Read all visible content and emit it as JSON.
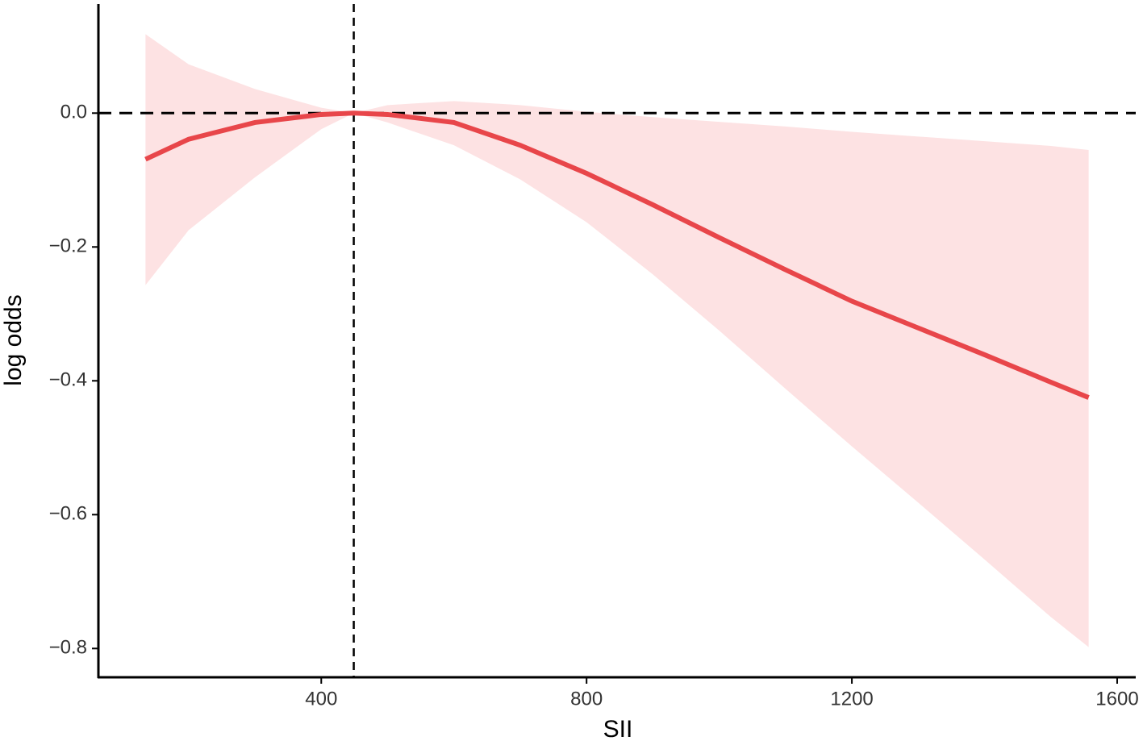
{
  "chart_data": {
    "type": "line",
    "x_label": "SII",
    "y_label": "log odds",
    "x": [
      135,
      200,
      300,
      400,
      449,
      500,
      600,
      700,
      800,
      900,
      1000,
      1100,
      1200,
      1300,
      1400,
      1500,
      1557
    ],
    "values": [
      -0.069,
      -0.039,
      -0.014,
      -0.002,
      0,
      -0.002,
      -0.014,
      -0.048,
      -0.09,
      -0.137,
      -0.186,
      -0.234,
      -0.281,
      -0.321,
      -0.361,
      -0.402,
      -0.425
    ],
    "upper": [
      0.118,
      0.073,
      0.036,
      0.008,
      0,
      0.012,
      0.018,
      0.012,
      0.002,
      -0.006,
      -0.013,
      -0.02,
      -0.028,
      -0.035,
      -0.042,
      -0.049,
      -0.055
    ],
    "lower": [
      -0.257,
      -0.175,
      -0.096,
      -0.024,
      0,
      -0.014,
      -0.048,
      -0.099,
      -0.163,
      -0.241,
      -0.325,
      -0.412,
      -0.498,
      -0.582,
      -0.667,
      -0.753,
      -0.798
    ],
    "color": "#e8464a",
    "band_color": "#fde2e3",
    "xlim": [
      64,
      1628
    ],
    "ylim": [
      -0.843,
      0.163
    ],
    "xticks": [
      400,
      800,
      1200,
      1600
    ],
    "yticks": [
      {
        "value": 0,
        "label": "0.0"
      },
      {
        "value": -0.2,
        "label": "−0.2"
      },
      {
        "value": -0.4,
        "label": "−0.4"
      },
      {
        "value": -0.6,
        "label": "−0.6"
      },
      {
        "value": -0.8,
        "label": "−0.8"
      }
    ],
    "hline": 0,
    "vline": 449
  }
}
